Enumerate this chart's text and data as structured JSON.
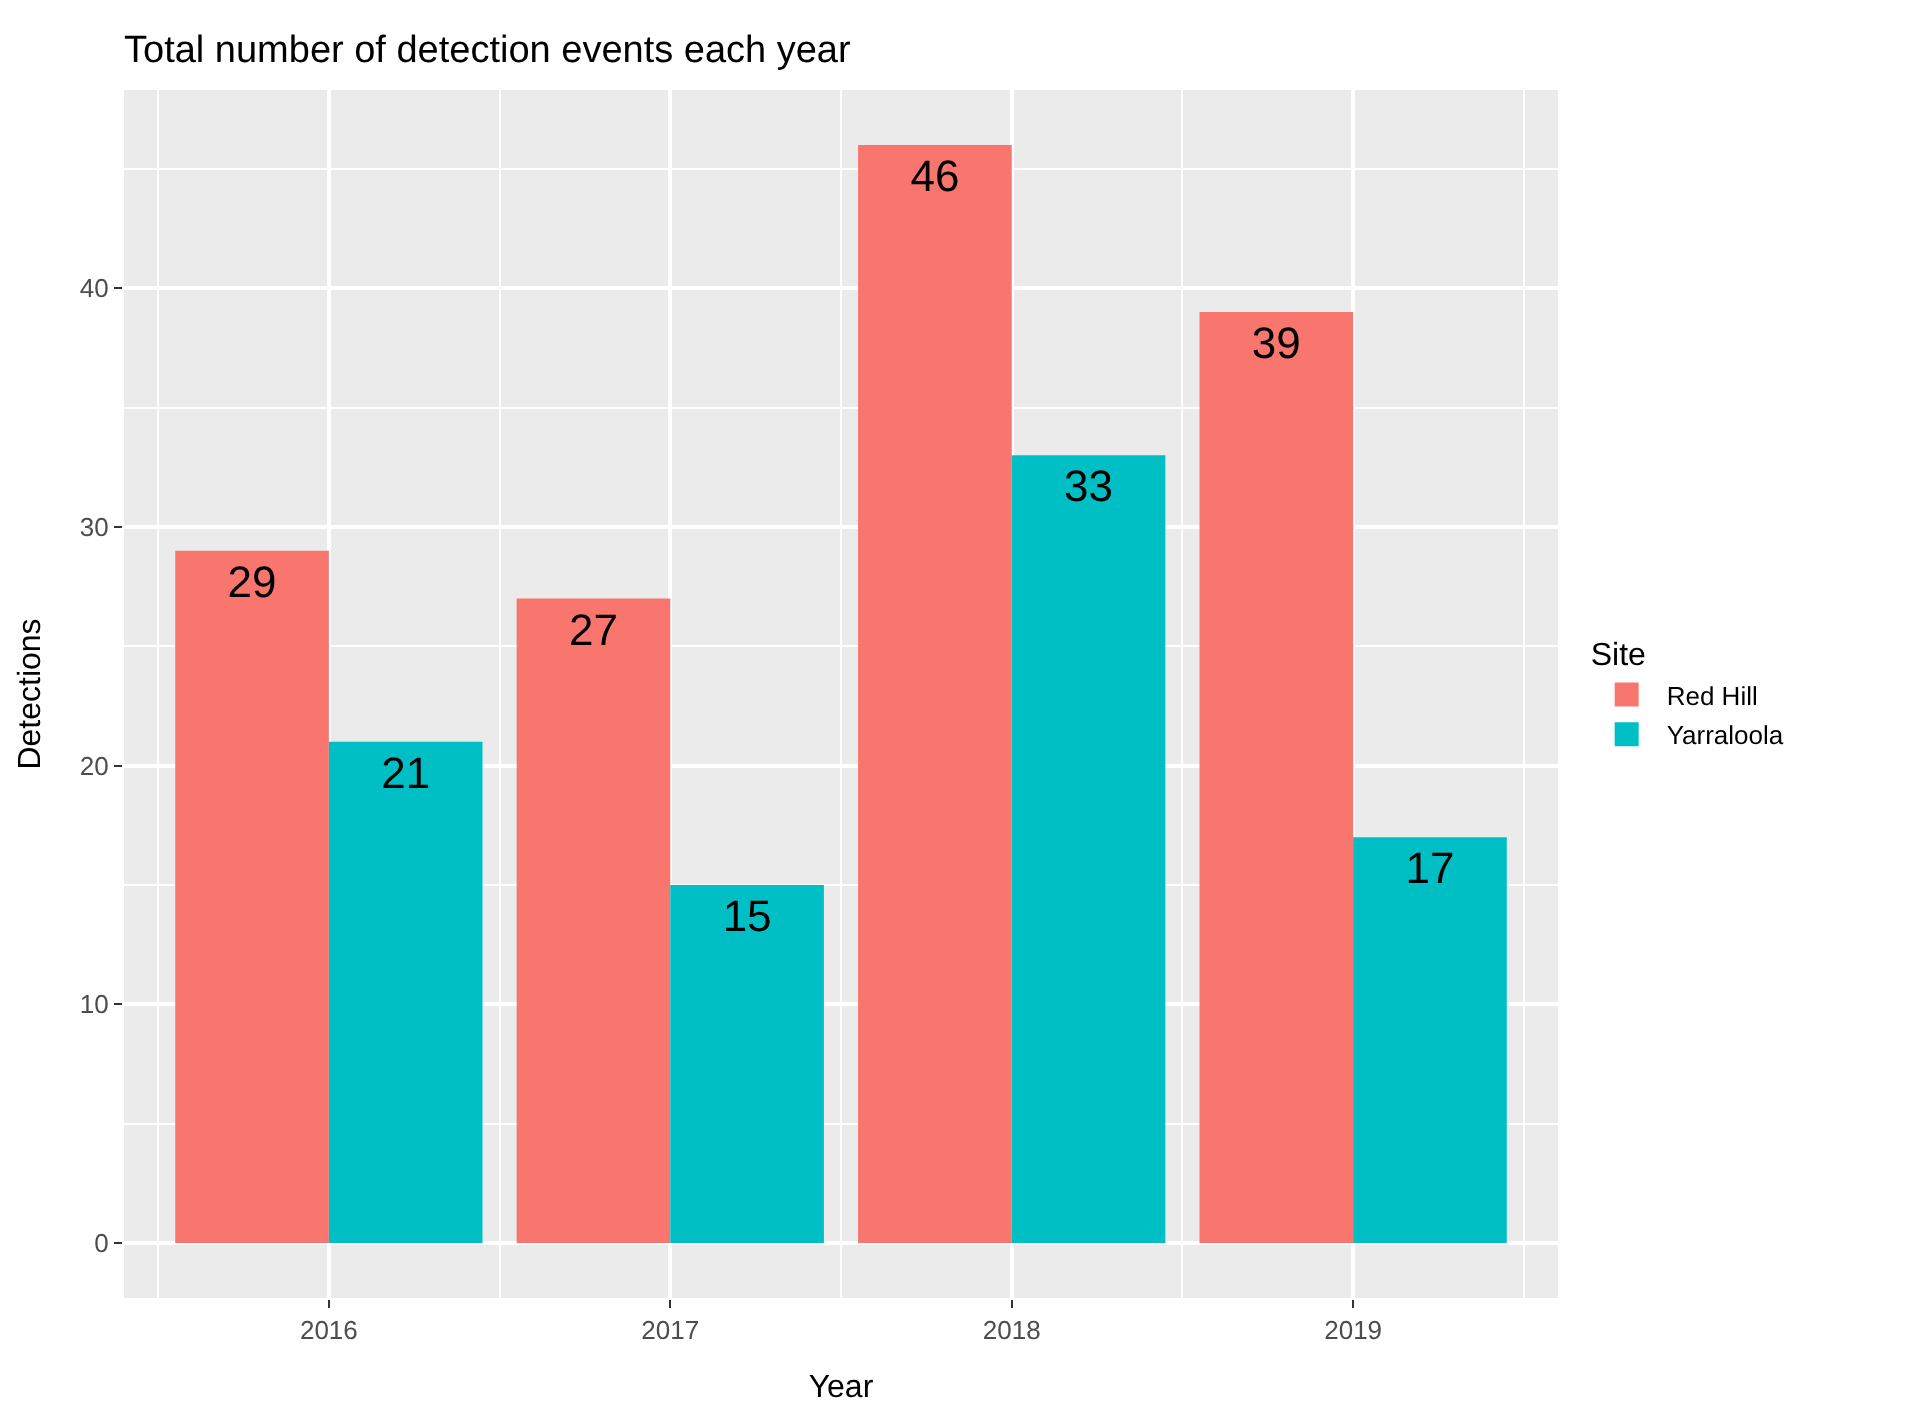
{
  "chart_data": {
    "type": "bar",
    "title": "Total number of detection events each year",
    "xlabel": "Year",
    "ylabel": "Detections",
    "legend_title": "Site",
    "categories": [
      "2016",
      "2017",
      "2018",
      "2019"
    ],
    "series": [
      {
        "name": "Red Hill",
        "color": "#f8766d",
        "values": [
          29,
          27,
          46,
          39
        ]
      },
      {
        "name": "Yarraloola",
        "color": "#00bfc4",
        "values": [
          21,
          15,
          33,
          17
        ]
      }
    ],
    "ylim": [
      -2.3,
      48.3
    ],
    "yticks": [
      0,
      10,
      20,
      30,
      40
    ],
    "grid": true,
    "legend": "right",
    "data_labels": true
  }
}
